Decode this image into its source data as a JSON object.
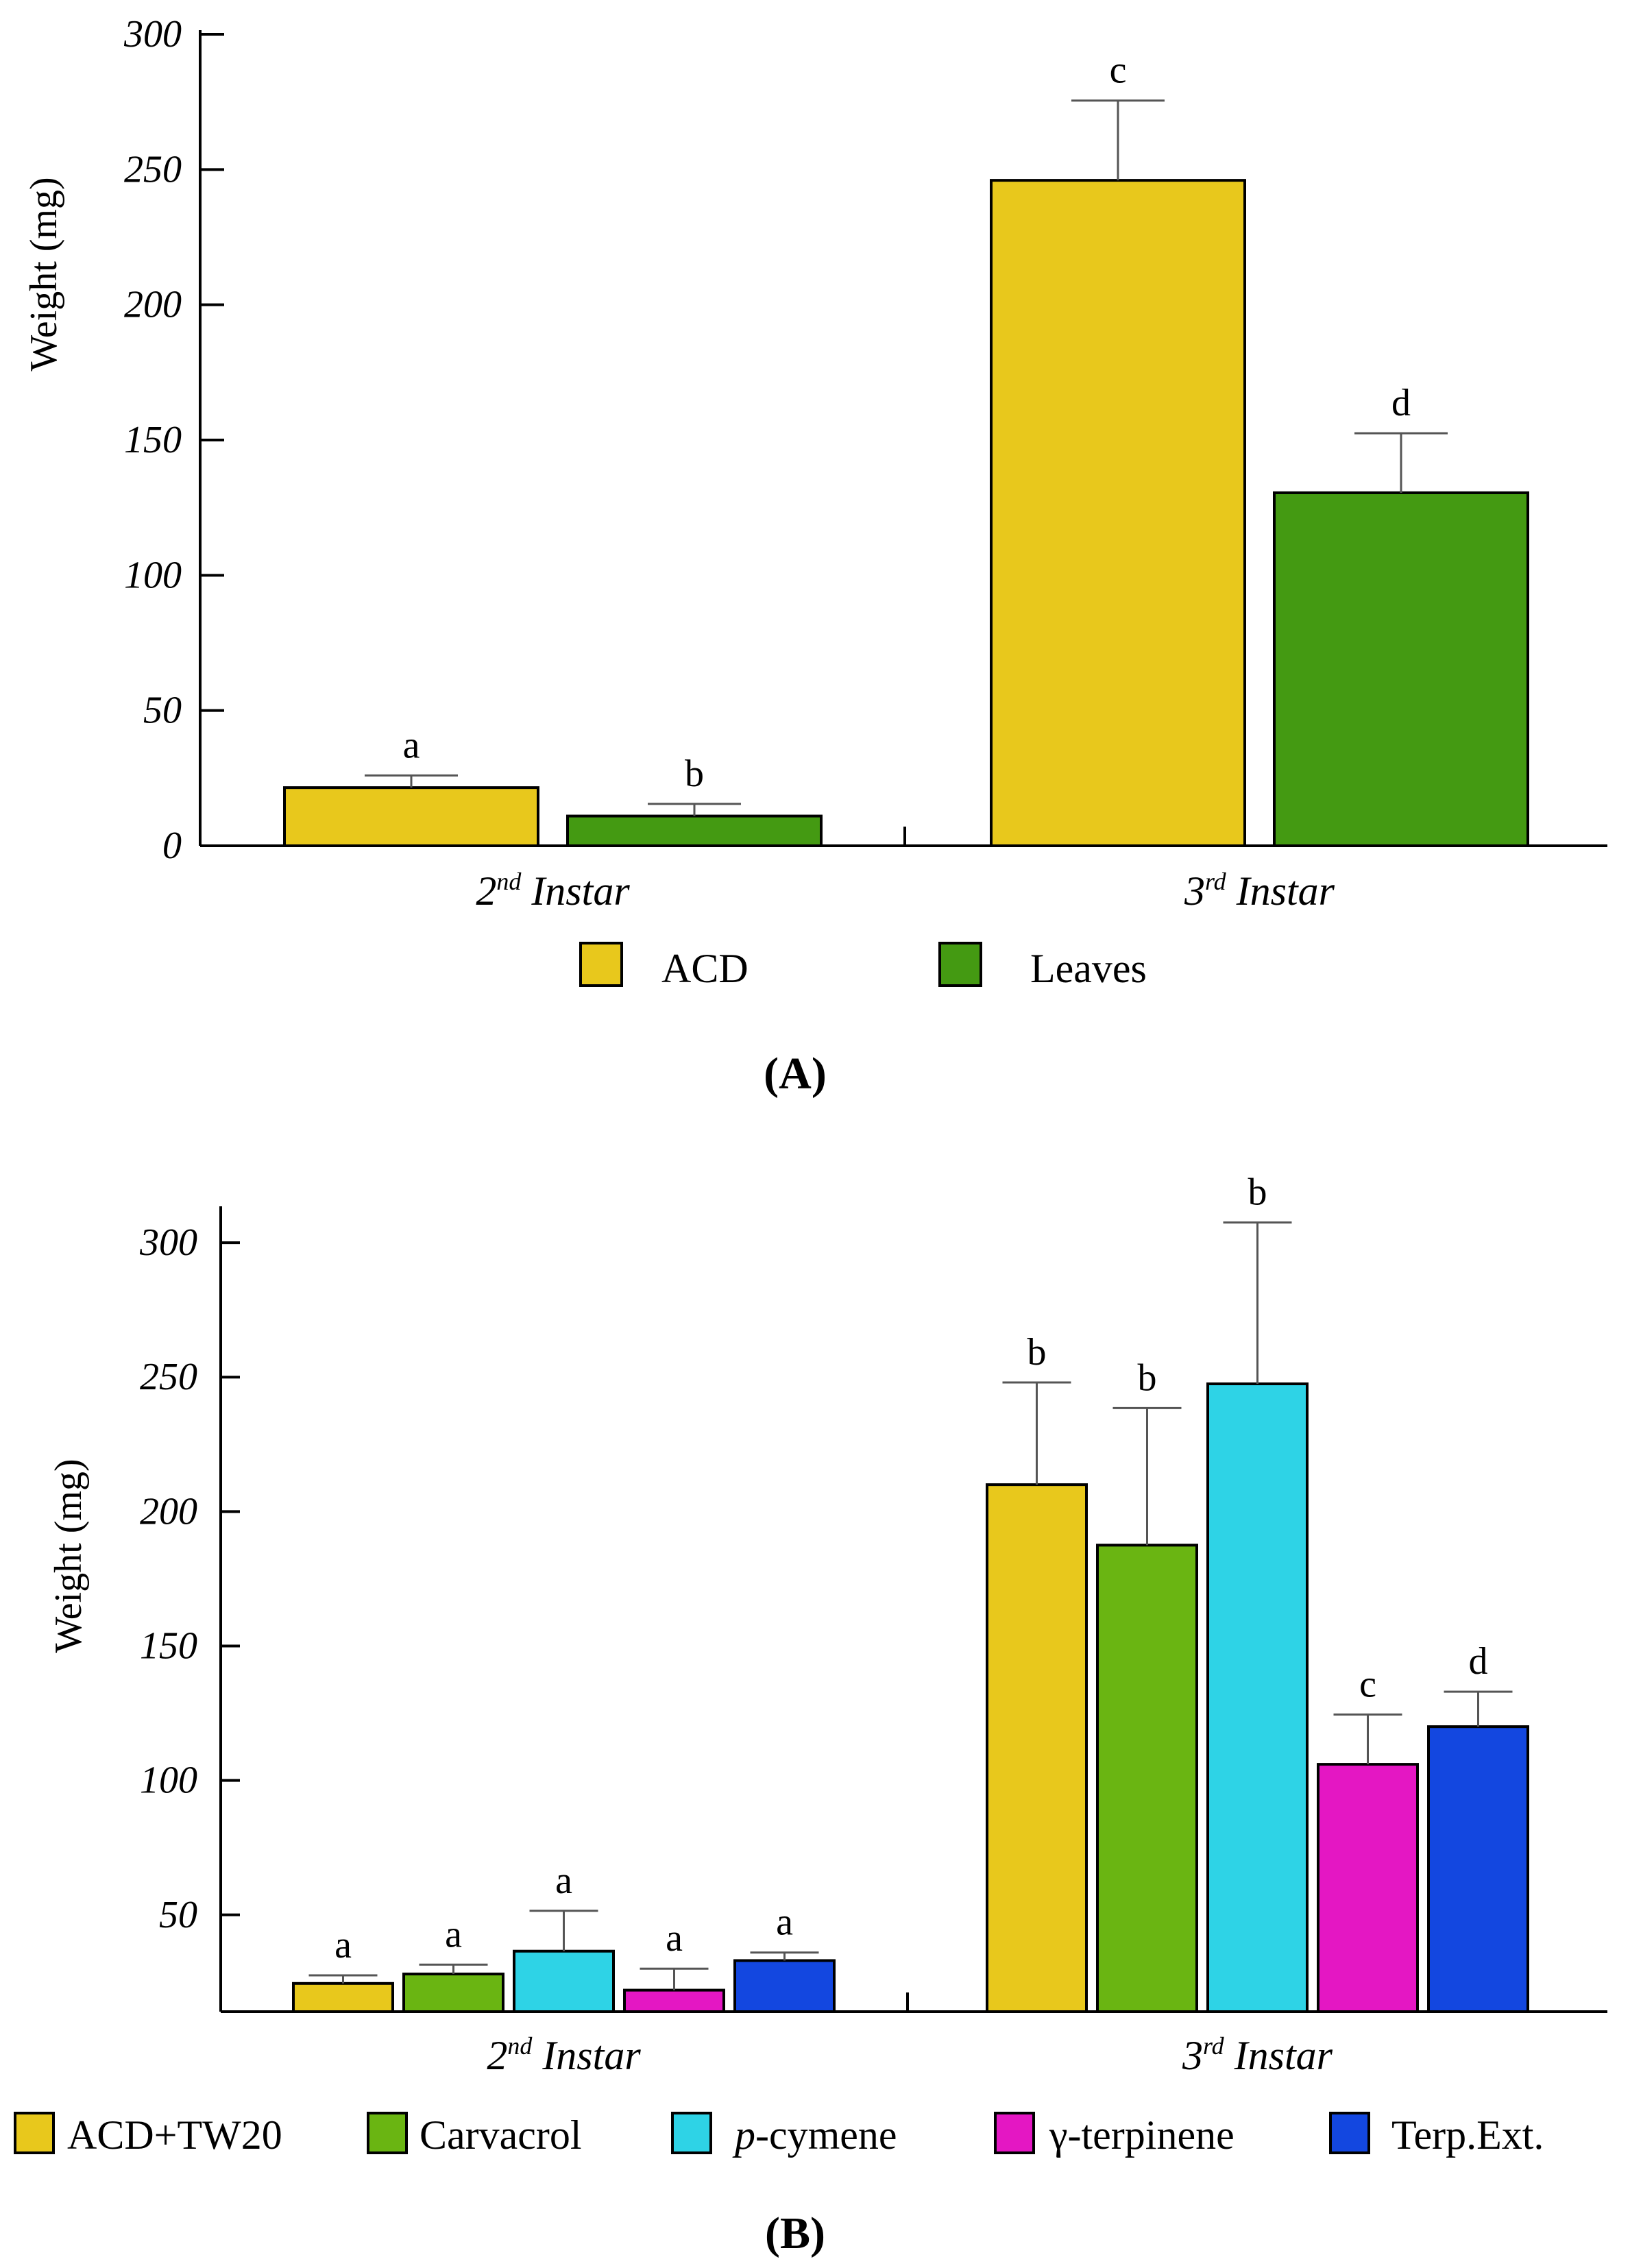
{
  "chart_data": [
    {
      "type": "bar",
      "panel_label": "A",
      "ylabel": "Weight (mg)",
      "ylim": [
        0,
        300
      ],
      "yticks": [
        "0",
        "50",
        "100",
        "150",
        "200",
        "250",
        "300"
      ],
      "categories": [
        {
          "label": "Instar",
          "ordinal": "2",
          "suffix": "nd"
        },
        {
          "label": "Instar",
          "ordinal": "3",
          "suffix": "rd"
        }
      ],
      "series": [
        {
          "name": "ACD",
          "color": "#E8C81C",
          "values": [
            21.5,
            246
          ],
          "errors": [
            4.5,
            29.5
          ],
          "letters": [
            "a",
            "c"
          ]
        },
        {
          "name": "Leaves",
          "color": "#449A12",
          "values": [
            11,
            130.5
          ],
          "errors": [
            4.5,
            22
          ],
          "letters": [
            "b",
            "d"
          ]
        }
      ]
    },
    {
      "type": "bar",
      "panel_label": "B",
      "ylabel": "Weight (mg)",
      "ylim": [
        14,
        312
      ],
      "yticks": [
        "50",
        "100",
        "150",
        "200",
        "250",
        "300"
      ],
      "categories": [
        {
          "label": "Instar",
          "ordinal": "2",
          "suffix": "nd"
        },
        {
          "label": "Instar",
          "ordinal": "3",
          "suffix": "rd"
        }
      ],
      "series": [
        {
          "name": "ACD+TW20",
          "prefix_italic": "",
          "color": "#E8C81C",
          "values": [
            24.5,
            210
          ],
          "errors": [
            3,
            38
          ],
          "letters": [
            "a",
            "b"
          ]
        },
        {
          "name": "Carvacrol",
          "prefix_italic": "",
          "color": "#6AB512",
          "values": [
            28,
            187.5
          ],
          "errors": [
            3.5,
            51
          ],
          "letters": [
            "a",
            "b"
          ]
        },
        {
          "name": "-cymene",
          "prefix_italic": "p",
          "color": "#2ED3E6",
          "values": [
            36.5,
            247.5
          ],
          "errors": [
            15,
            60
          ],
          "letters": [
            "a",
            "b"
          ]
        },
        {
          "name": "γ-terpinene",
          "prefix_italic": "",
          "color": "#E417C3",
          "values": [
            22,
            106
          ],
          "errors": [
            8,
            18.5
          ],
          "letters": [
            "a",
            "c"
          ]
        },
        {
          "name": "Terp.Ext.",
          "prefix_italic": "",
          "color": "#1347E0",
          "values": [
            33,
            120
          ],
          "errors": [
            3,
            13
          ],
          "letters": [
            "a",
            "d"
          ]
        }
      ]
    }
  ]
}
